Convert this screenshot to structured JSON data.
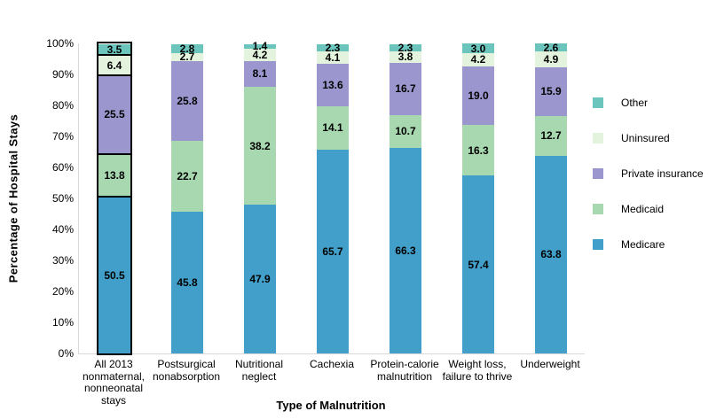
{
  "chart_data": {
    "type": "bar",
    "stacked": true,
    "title": "",
    "xlabel": "Type of Malnutrition",
    "ylabel": "Percentage of Hospital Stays",
    "ylim": [
      0,
      100
    ],
    "ytick_step": 10,
    "ytick_suffix": "%",
    "grid": false,
    "legend_position": "right",
    "axis_color": "#D9D9D9",
    "label_color": "#000000",
    "categories": [
      "All 2013\nnonmaternal,\nnonneonatal\nstays",
      "Postsurgical\nnonabsorption",
      "Nutritional\nneglect",
      "Cachexia",
      "Protein-calorie\nmalnutrition",
      "Weight loss,\nfailure to thrive",
      "Underweight"
    ],
    "highlighted_category_index": 0,
    "highlight_outline_color": "#000000",
    "series": [
      {
        "name": "Medicare",
        "color": "#419FC9",
        "values": [
          50.5,
          45.8,
          47.9,
          65.7,
          66.3,
          57.4,
          63.8
        ]
      },
      {
        "name": "Medicaid",
        "color": "#A7D8B0",
        "values": [
          13.8,
          22.7,
          38.2,
          14.1,
          10.7,
          16.3,
          12.7
        ]
      },
      {
        "name": "Private insurance",
        "color": "#9B97CE",
        "values": [
          25.5,
          25.8,
          8.1,
          13.6,
          16.7,
          19.0,
          15.9
        ]
      },
      {
        "name": "Uninsured",
        "color": "#E4F3DE",
        "values": [
          6.4,
          2.7,
          4.2,
          4.1,
          3.8,
          4.2,
          4.9
        ]
      },
      {
        "name": "Other",
        "color": "#6BC5BD",
        "values": [
          3.5,
          2.8,
          1.4,
          2.3,
          2.3,
          3.0,
          2.6
        ]
      }
    ],
    "legend_order_top_to_bottom": [
      "Other",
      "Uninsured",
      "Private insurance",
      "Medicaid",
      "Medicare"
    ]
  }
}
